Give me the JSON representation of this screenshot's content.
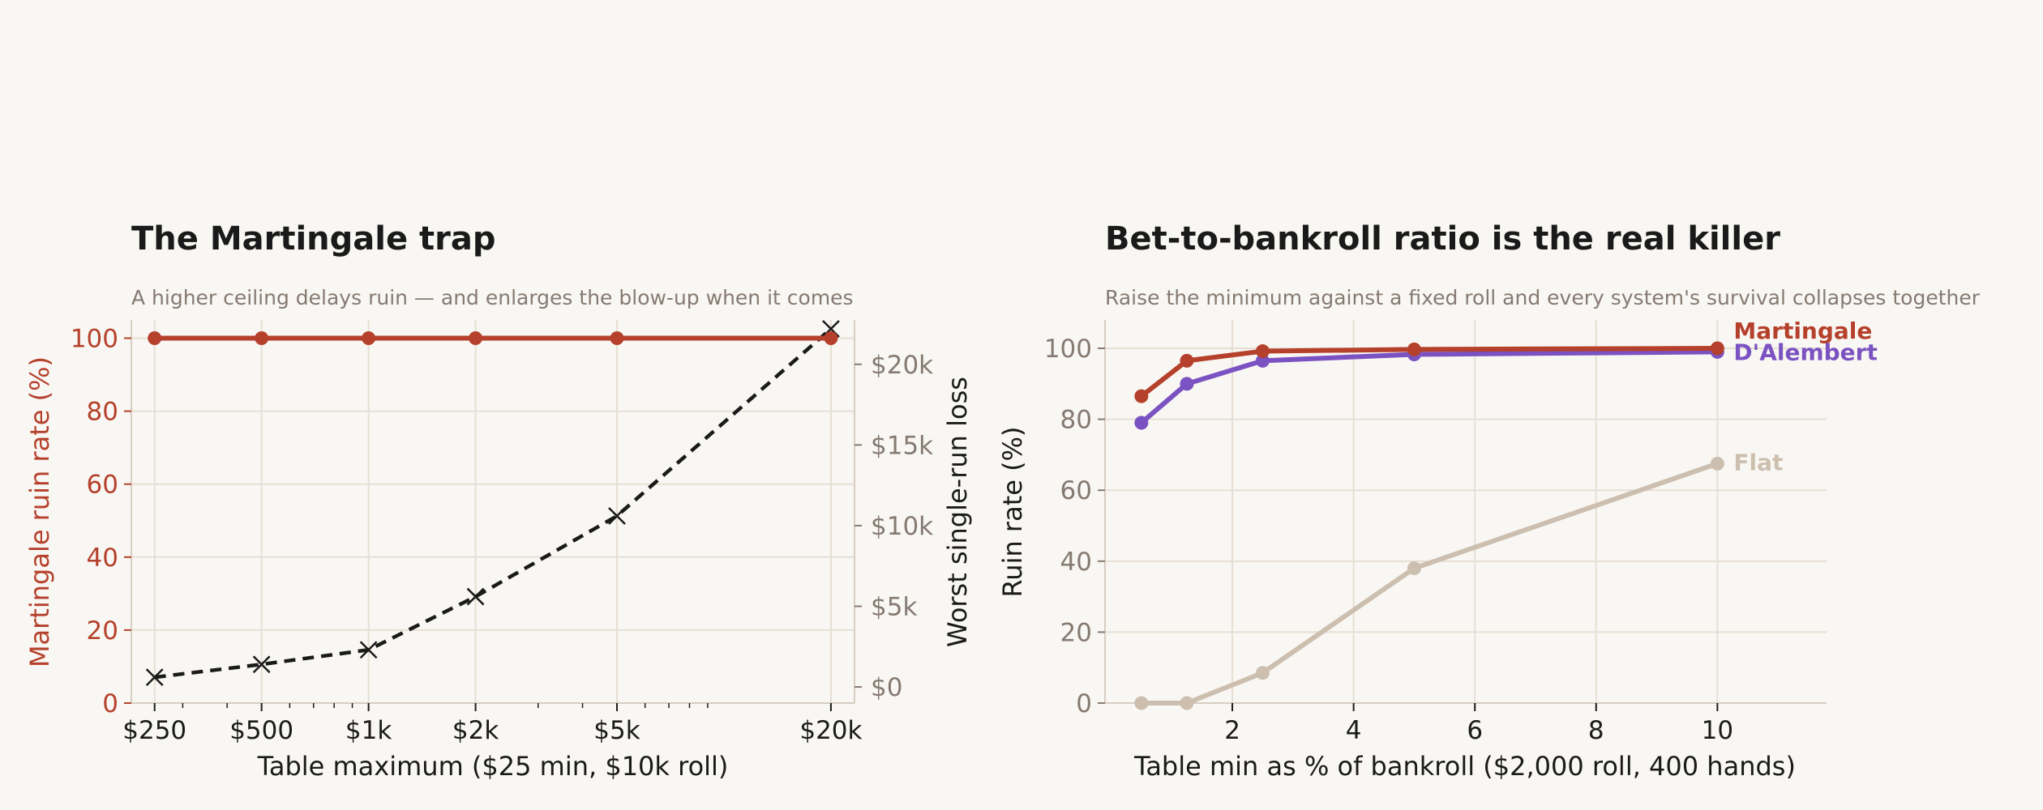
{
  "colors": {
    "background": "#f9f7f3",
    "grid": "#e6dfd4",
    "martingale": "#b5412c",
    "dalembert": "#7b52c1",
    "flat": "#cdbfaf",
    "loss_line": "#1a1a1a",
    "muted_text": "#857a72",
    "title_text": "#1a1a1a"
  },
  "chart_data": [
    {
      "type": "line",
      "title": "The Martingale trap",
      "subtitle": "A higher ceiling delays ruin — and enlarges the blow-up when it comes",
      "xlabel": "Table maximum  ($25 min, $10k roll)",
      "ylabel": "Martingale ruin rate (%)",
      "y2label": "Worst single-run loss",
      "x_scale": "log",
      "x": [
        250,
        500,
        1000,
        2000,
        5000,
        20000
      ],
      "x_tick_labels": [
        "$250",
        "$500",
        "$1k",
        "$2k",
        "$5k",
        "$20k"
      ],
      "ylim": [
        0,
        105
      ],
      "y_ticks": [
        0,
        20,
        40,
        60,
        80,
        100
      ],
      "y2lim": [
        -1000,
        22750
      ],
      "y2_ticks": [
        0,
        5000,
        10000,
        15000,
        20000
      ],
      "y2_tick_labels": [
        "$0",
        "$5k",
        "$10k",
        "$15k",
        "$20k"
      ],
      "grid": true,
      "series": [
        {
          "key": "ruin",
          "axis": "left",
          "marker": "circle",
          "style": "solid",
          "values": [
            100,
            100,
            100,
            100,
            100,
            100
          ]
        },
        {
          "key": "loss",
          "axis": "right",
          "marker": "x",
          "style": "dashed",
          "values": [
            600,
            1400,
            2300,
            5600,
            10600,
            22200
          ]
        }
      ]
    },
    {
      "type": "line",
      "title": "Bet-to-bankroll ratio is the real killer",
      "subtitle": "Raise the minimum against a fixed roll and every system's survival collapses together",
      "xlabel": "Table min as % of bankroll  ($2,000 roll, 400 hands)",
      "ylabel": "Ruin rate (%)",
      "x": [
        0.5,
        1.25,
        2.5,
        5,
        10
      ],
      "xlim": [
        -0.1,
        11.8
      ],
      "x_ticks": [
        2,
        4,
        6,
        8,
        10
      ],
      "ylim": [
        0,
        108
      ],
      "y_ticks": [
        0,
        20,
        40,
        60,
        80,
        100
      ],
      "grid": true,
      "series": [
        {
          "name": "Martingale",
          "color_key": "martingale",
          "values": [
            86.5,
            96.5,
            99.2,
            99.7,
            100
          ]
        },
        {
          "name": "D'Alembert",
          "color_key": "dalembert",
          "values": [
            79,
            90,
            96.5,
            98.3,
            99
          ]
        },
        {
          "name": "Flat",
          "color_key": "flat",
          "values": [
            0,
            0,
            8.5,
            38,
            67.5
          ]
        }
      ]
    }
  ]
}
